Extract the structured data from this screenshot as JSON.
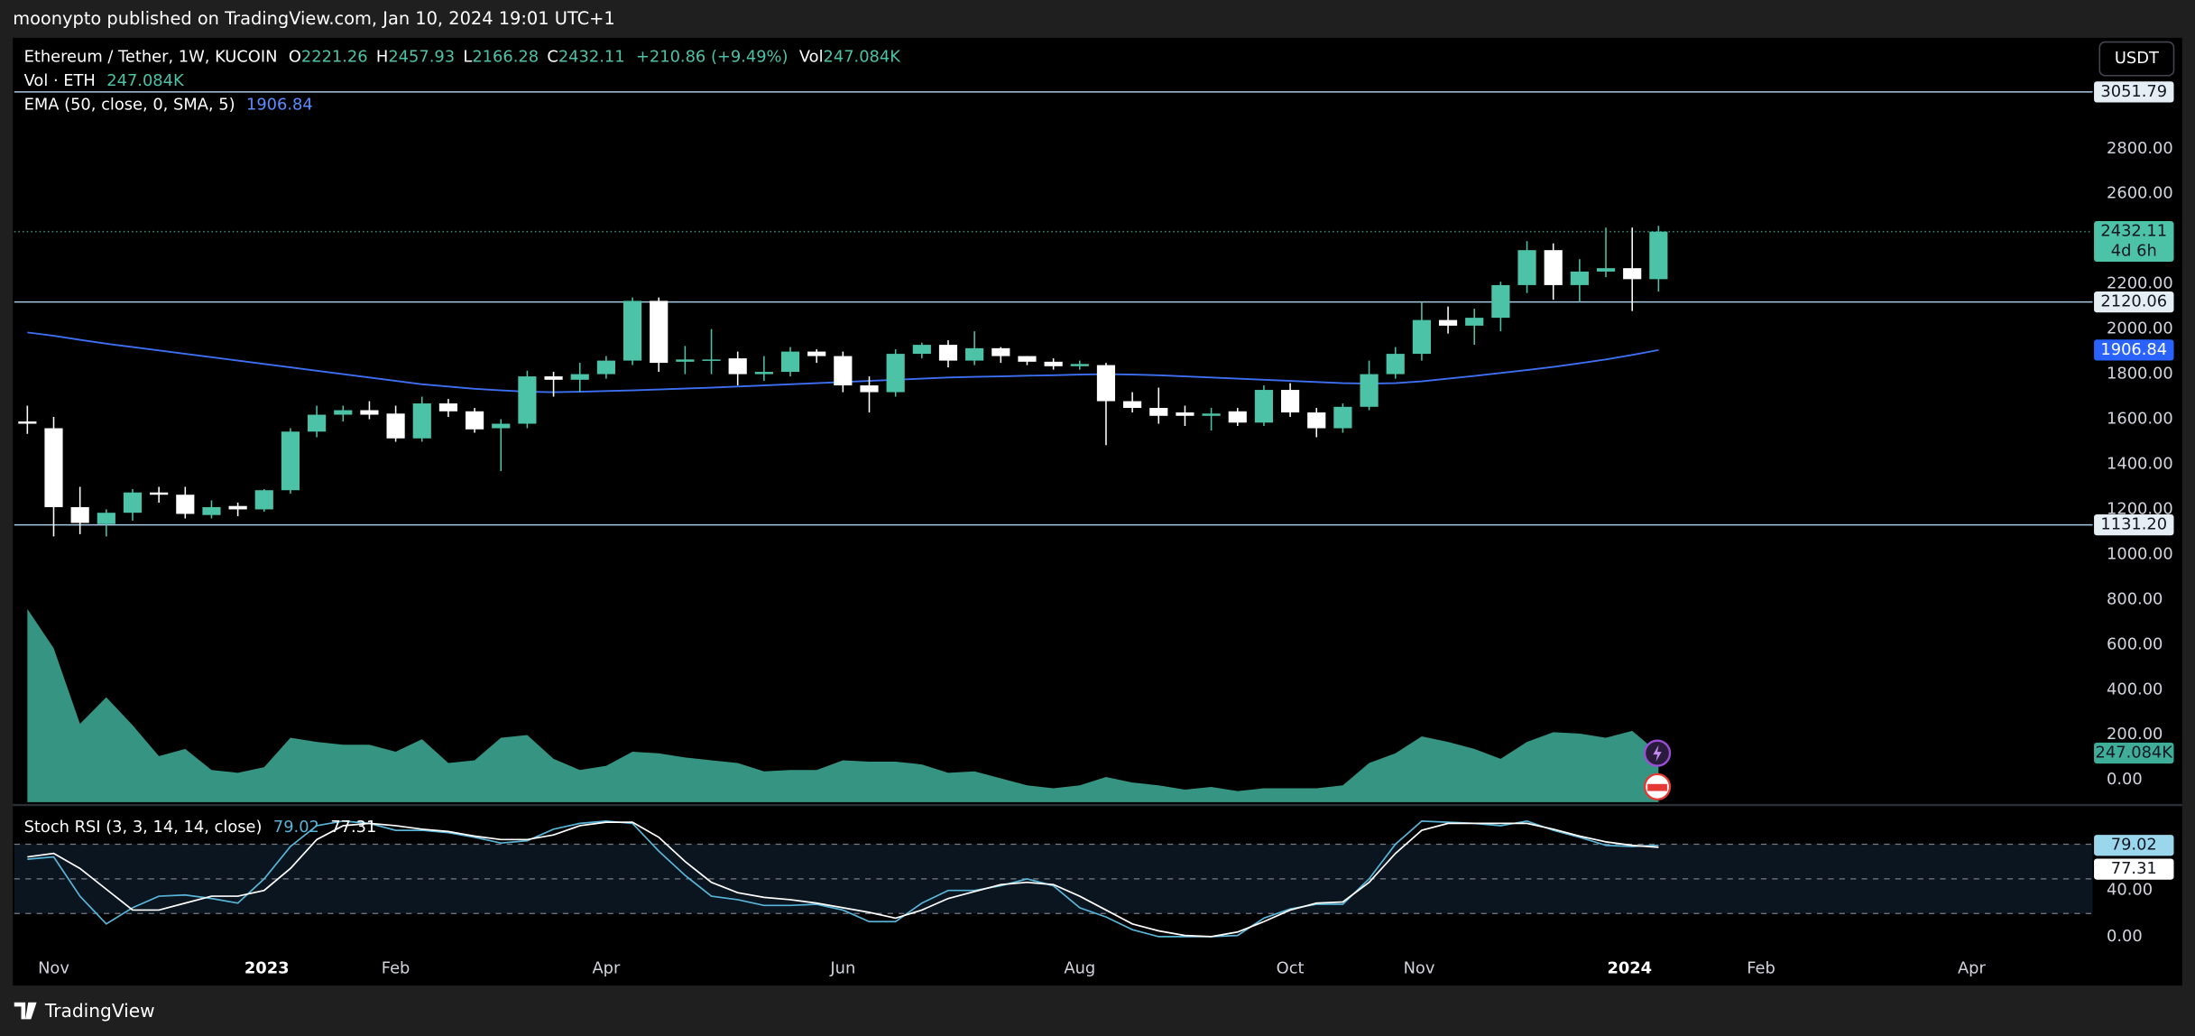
{
  "header": {
    "publisher": "moonypto published on TradingView.com, Jan 10, 2024 19:01 UTC+1",
    "currency": "USDT"
  },
  "footer": {
    "brand": "TradingView"
  },
  "chart_data": [
    {
      "type": "candlestick",
      "title": "Ethereum / Tether, 1W, KUCOIN",
      "ohlc_labels": [
        "O",
        "H",
        "L",
        "C"
      ],
      "change": "+210.86 (+9.49%)",
      "countdown": "4d 6h",
      "up_color": "#4cc2a6",
      "down_color": "#ffffff",
      "xlim": [
        -0.5,
        78.5
      ],
      "x": [
        0,
        1,
        2,
        3,
        4,
        5,
        6,
        7,
        8,
        9,
        10,
        11,
        12,
        13,
        14,
        15,
        16,
        17,
        18,
        19,
        20,
        21,
        22,
        23,
        24,
        25,
        26,
        27,
        28,
        29,
        30,
        31,
        32,
        33,
        34,
        35,
        36,
        37,
        38,
        39,
        40,
        41,
        42,
        43,
        44,
        45,
        46,
        47,
        48,
        49,
        50,
        51,
        52,
        53,
        54,
        55,
        56,
        57,
        58,
        59,
        60,
        61,
        62
      ],
      "open": [
        1590,
        1560,
        1210,
        1135,
        1185,
        1275,
        1265,
        1175,
        1215,
        1200,
        1285,
        1545,
        1620,
        1640,
        1625,
        1515,
        1670,
        1635,
        1560,
        1580,
        1790,
        1775,
        1800,
        1860,
        2125,
        1855,
        1860,
        1870,
        1800,
        1810,
        1900,
        1880,
        1750,
        1720,
        1890,
        1930,
        1860,
        1915,
        1880,
        1855,
        1835,
        1840,
        1680,
        1650,
        1630,
        1615,
        1635,
        1585,
        1730,
        1630,
        1560,
        1655,
        1800,
        1890,
        2040,
        2015,
        2050,
        2195,
        2350,
        2195,
        2255,
        2270,
        2221.26
      ],
      "high": [
        1660,
        1610,
        1300,
        1200,
        1290,
        1300,
        1300,
        1240,
        1230,
        1290,
        1560,
        1660,
        1660,
        1680,
        1660,
        1700,
        1690,
        1650,
        1600,
        1815,
        1810,
        1850,
        1880,
        2140,
        2140,
        1925,
        2000,
        1900,
        1880,
        1920,
        1910,
        1900,
        1790,
        1910,
        1940,
        1950,
        1990,
        1920,
        1880,
        1870,
        1860,
        1850,
        1720,
        1740,
        1660,
        1650,
        1650,
        1750,
        1760,
        1650,
        1670,
        1860,
        1920,
        2120,
        2100,
        2090,
        2210,
        2390,
        2380,
        2310,
        2450,
        2450,
        2457.93
      ],
      "low": [
        1535,
        1080,
        1090,
        1080,
        1150,
        1230,
        1160,
        1160,
        1170,
        1190,
        1270,
        1520,
        1590,
        1600,
        1500,
        1500,
        1610,
        1540,
        1370,
        1560,
        1700,
        1720,
        1780,
        1840,
        1810,
        1800,
        1800,
        1750,
        1770,
        1790,
        1850,
        1720,
        1630,
        1700,
        1870,
        1830,
        1840,
        1850,
        1840,
        1820,
        1820,
        1485,
        1630,
        1580,
        1570,
        1550,
        1570,
        1570,
        1610,
        1520,
        1540,
        1640,
        1780,
        1860,
        1980,
        1930,
        1990,
        2160,
        2130,
        2120,
        2230,
        2080,
        2166.28
      ],
      "close": [
        1580,
        1210,
        1140,
        1185,
        1275,
        1265,
        1180,
        1210,
        1200,
        1285,
        1545,
        1620,
        1640,
        1620,
        1515,
        1670,
        1635,
        1555,
        1580,
        1790,
        1775,
        1800,
        1860,
        2125,
        1850,
        1865,
        1865,
        1800,
        1810,
        1900,
        1880,
        1750,
        1720,
        1890,
        1930,
        1860,
        1915,
        1880,
        1855,
        1835,
        1845,
        1680,
        1650,
        1615,
        1615,
        1625,
        1585,
        1730,
        1630,
        1560,
        1655,
        1800,
        1890,
        2040,
        2015,
        2050,
        2195,
        2350,
        2195,
        2255,
        2270,
        2221.26,
        2432.11
      ],
      "ylim": [
        -99,
        3292
      ],
      "yticks": [
        {
          "value": 0,
          "label": "0.00"
        },
        {
          "value": 200,
          "label": "200.00"
        },
        {
          "value": 400,
          "label": "400.00"
        },
        {
          "value": 600,
          "label": "600.00"
        },
        {
          "value": 800,
          "label": "800.00"
        },
        {
          "value": 1000,
          "label": "1000.00"
        },
        {
          "value": 1200,
          "label": "1200.00"
        },
        {
          "value": 1400,
          "label": "1400.00"
        },
        {
          "value": 1600,
          "label": "1600.00"
        },
        {
          "value": 1800,
          "label": "1800.00"
        },
        {
          "value": 2000,
          "label": "2000.00"
        },
        {
          "value": 2200,
          "label": "2200.00"
        },
        {
          "value": 2600,
          "label": "2600.00"
        },
        {
          "value": 2800,
          "label": "2800.00"
        }
      ],
      "grid": false,
      "hlines_color": "#a9c8e2",
      "hlines": [
        {
          "value": 3051.79
        },
        {
          "value": 2120.06
        },
        {
          "value": 1131.2,
          "label": "1131.20"
        }
      ],
      "volume": {
        "label": "Vol · ETH",
        "legend_prefix": "Vol",
        "color": "#3fae99",
        "ylim": [
          0,
          3845
        ],
        "values": [
          972,
          775,
          394,
          528,
          387,
          232,
          268,
          162,
          148,
          176,
          324,
          303,
          289,
          289,
          254,
          317,
          197,
          211,
          324,
          338,
          218,
          162,
          183,
          254,
          246,
          225,
          211,
          197,
          155,
          162,
          162,
          211,
          204,
          204,
          190,
          148,
          155,
          120,
          85,
          70,
          85,
          127,
          99,
          85,
          63,
          77,
          56,
          70,
          70,
          70,
          85,
          197,
          246,
          331,
          303,
          268,
          218,
          303,
          352,
          345,
          324,
          359,
          247.084
        ],
        "last_label": "247.084K"
      },
      "ema": {
        "label": "EMA (50, close, 0, SMA, 5)",
        "color": "#3d6ff2",
        "values": [
          1985,
          1970,
          1952,
          1935,
          1920,
          1905,
          1890,
          1875,
          1860,
          1845,
          1830,
          1815,
          1800,
          1785,
          1770,
          1755,
          1745,
          1735,
          1728,
          1722,
          1720,
          1722,
          1725,
          1728,
          1732,
          1736,
          1740,
          1745,
          1750,
          1755,
          1760,
          1765,
          1770,
          1775,
          1780,
          1785,
          1788,
          1790,
          1793,
          1795,
          1798,
          1800,
          1798,
          1795,
          1790,
          1785,
          1780,
          1775,
          1770,
          1765,
          1760,
          1758,
          1760,
          1768,
          1780,
          1792,
          1805,
          1818,
          1832,
          1848,
          1865,
          1885,
          1906.84
        ]
      }
    },
    {
      "type": "line",
      "title": "Stoch RSI (3, 3, 14, 14, close)",
      "xlim": [
        -0.5,
        78.5
      ],
      "x": [
        0,
        1,
        2,
        3,
        4,
        5,
        6,
        7,
        8,
        9,
        10,
        11,
        12,
        13,
        14,
        15,
        16,
        17,
        18,
        19,
        20,
        21,
        22,
        23,
        24,
        25,
        26,
        27,
        28,
        29,
        30,
        31,
        32,
        33,
        34,
        35,
        36,
        37,
        38,
        39,
        40,
        41,
        42,
        43,
        44,
        45,
        46,
        47,
        48,
        49,
        50,
        51,
        52,
        53,
        54,
        55,
        56,
        57,
        58,
        59,
        60,
        61,
        62
      ],
      "xticks": [
        {
          "value": 1,
          "label": "Nov"
        },
        {
          "value": 9.1,
          "label": "2023"
        },
        {
          "value": 14,
          "label": "Feb"
        },
        {
          "value": 22,
          "label": "Apr"
        },
        {
          "value": 31,
          "label": "Jun"
        },
        {
          "value": 40,
          "label": "Aug"
        },
        {
          "value": 48,
          "label": "Oct"
        },
        {
          "value": 52.9,
          "label": "Nov"
        },
        {
          "value": 60.9,
          "label": "2024"
        },
        {
          "value": 65.9,
          "label": "Feb"
        },
        {
          "value": 73.9,
          "label": "Apr"
        }
      ],
      "ylim": [
        -13.3,
        112.7
      ],
      "yticks": [
        {
          "value": 0,
          "label": "0.00"
        },
        {
          "value": 40,
          "label": "40.00"
        }
      ],
      "bands": [
        20,
        50,
        80
      ],
      "band_fill": "#0b1520",
      "series": [
        {
          "color": "#58b4d6",
          "values": [
            67,
            69,
            35,
            11,
            25,
            35,
            36,
            33,
            29,
            50,
            78,
            96,
            100,
            98,
            92,
            92,
            90,
            86,
            81,
            83,
            93,
            98,
            100,
            98,
            74,
            53,
            35,
            32,
            27,
            27,
            28,
            23,
            13,
            13,
            29,
            40,
            40,
            44,
            50,
            44,
            25,
            17,
            6,
            0,
            0,
            0,
            1,
            16,
            24,
            28,
            28,
            50,
            80,
            100,
            99,
            98,
            96,
            100,
            92,
            86,
            79,
            78,
            79.02
          ]
        },
        {
          "color": "#ffffff",
          "values": [
            69,
            72,
            59,
            41,
            23,
            23,
            29,
            35,
            35,
            40,
            59,
            84,
            96,
            98,
            96,
            93,
            91,
            87,
            84,
            84,
            88,
            96,
            99,
            99,
            86,
            65,
            47,
            38,
            34,
            32,
            29,
            25,
            21,
            16,
            23,
            33,
            39,
            45,
            47,
            45,
            35,
            23,
            11,
            5,
            1,
            0,
            4,
            13,
            23,
            29,
            30,
            47,
            72,
            92,
            98,
            98,
            98,
            98,
            93,
            87,
            82,
            79,
            77.31
          ]
        }
      ]
    }
  ]
}
